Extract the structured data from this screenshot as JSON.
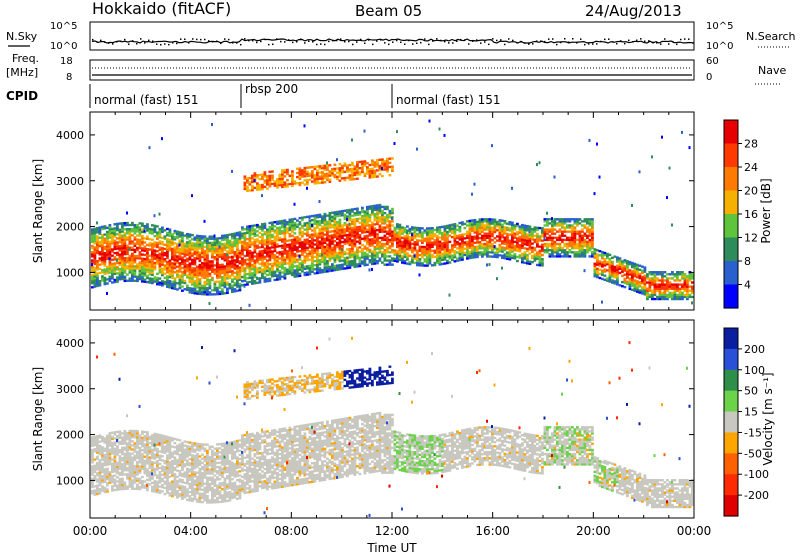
{
  "header": {
    "station": "Hokkaido (fitACF)",
    "beam": "Beam 05",
    "date": "24/Aug/2013"
  },
  "aux": {
    "nsky_label": "N.Sky",
    "nsearch_label": "N.Search",
    "freq_label": "Freq.",
    "freq_unit": "[MHz]",
    "nave_label": "Nave",
    "cpid_label": "CPID",
    "nsky_ticks": [
      "10^5",
      "10^0"
    ],
    "nsearch_ticks": [
      "10^5",
      "10^0"
    ],
    "freq_ticks": [
      "18",
      "8"
    ],
    "nave_ticks": [
      "60",
      "0"
    ]
  },
  "cpid": {
    "segments": [
      {
        "label": "normal (fast) 151",
        "start_h": 0,
        "end_h": 6
      },
      {
        "label": "rbsp 200",
        "start_h": 6,
        "end_h": 12
      },
      {
        "label": "normal (fast) 151",
        "start_h": 12,
        "end_h": 24
      }
    ]
  },
  "chart_data": [
    {
      "type": "heatmap",
      "name": "power",
      "ylabel": "Slant Range [km]",
      "ylim": [
        180,
        4500
      ],
      "xlim": [
        0,
        24
      ],
      "y_ticks": [
        1000,
        2000,
        3000,
        4000
      ],
      "colorbar": {
        "label": "Power [dB]",
        "ticks": [
          "4",
          "8",
          "12",
          "16",
          "20",
          "24",
          "28"
        ],
        "colors": [
          "#0000ff",
          "#2a5fd0",
          "#2e8c5c",
          "#5fc43c",
          "#f5b000",
          "#ff7a00",
          "#ff3a00",
          "#e80000"
        ]
      }
    },
    {
      "type": "heatmap",
      "name": "velocity",
      "ylabel": "Slant Range [km]",
      "xlabel": "Time UT",
      "ylim": [
        180,
        4500
      ],
      "xlim": [
        0,
        24
      ],
      "y_ticks": [
        1000,
        2000,
        3000,
        4000
      ],
      "x_ticks": [
        "00:00",
        "04:00",
        "08:00",
        "12:00",
        "16:00",
        "20:00",
        "00:00"
      ],
      "colorbar": {
        "label": "Velocity [m s⁻¹]",
        "ticks": [
          "200",
          "100",
          "50",
          "15",
          "-15",
          "-50",
          "-100",
          "-200"
        ],
        "colors": [
          "#0a1ea0",
          "#2a4fd8",
          "#2f8f4a",
          "#6cd24a",
          "#c8c8c0",
          "#ffa500",
          "#ff6000",
          "#ff2a00",
          "#e00000"
        ]
      }
    }
  ]
}
